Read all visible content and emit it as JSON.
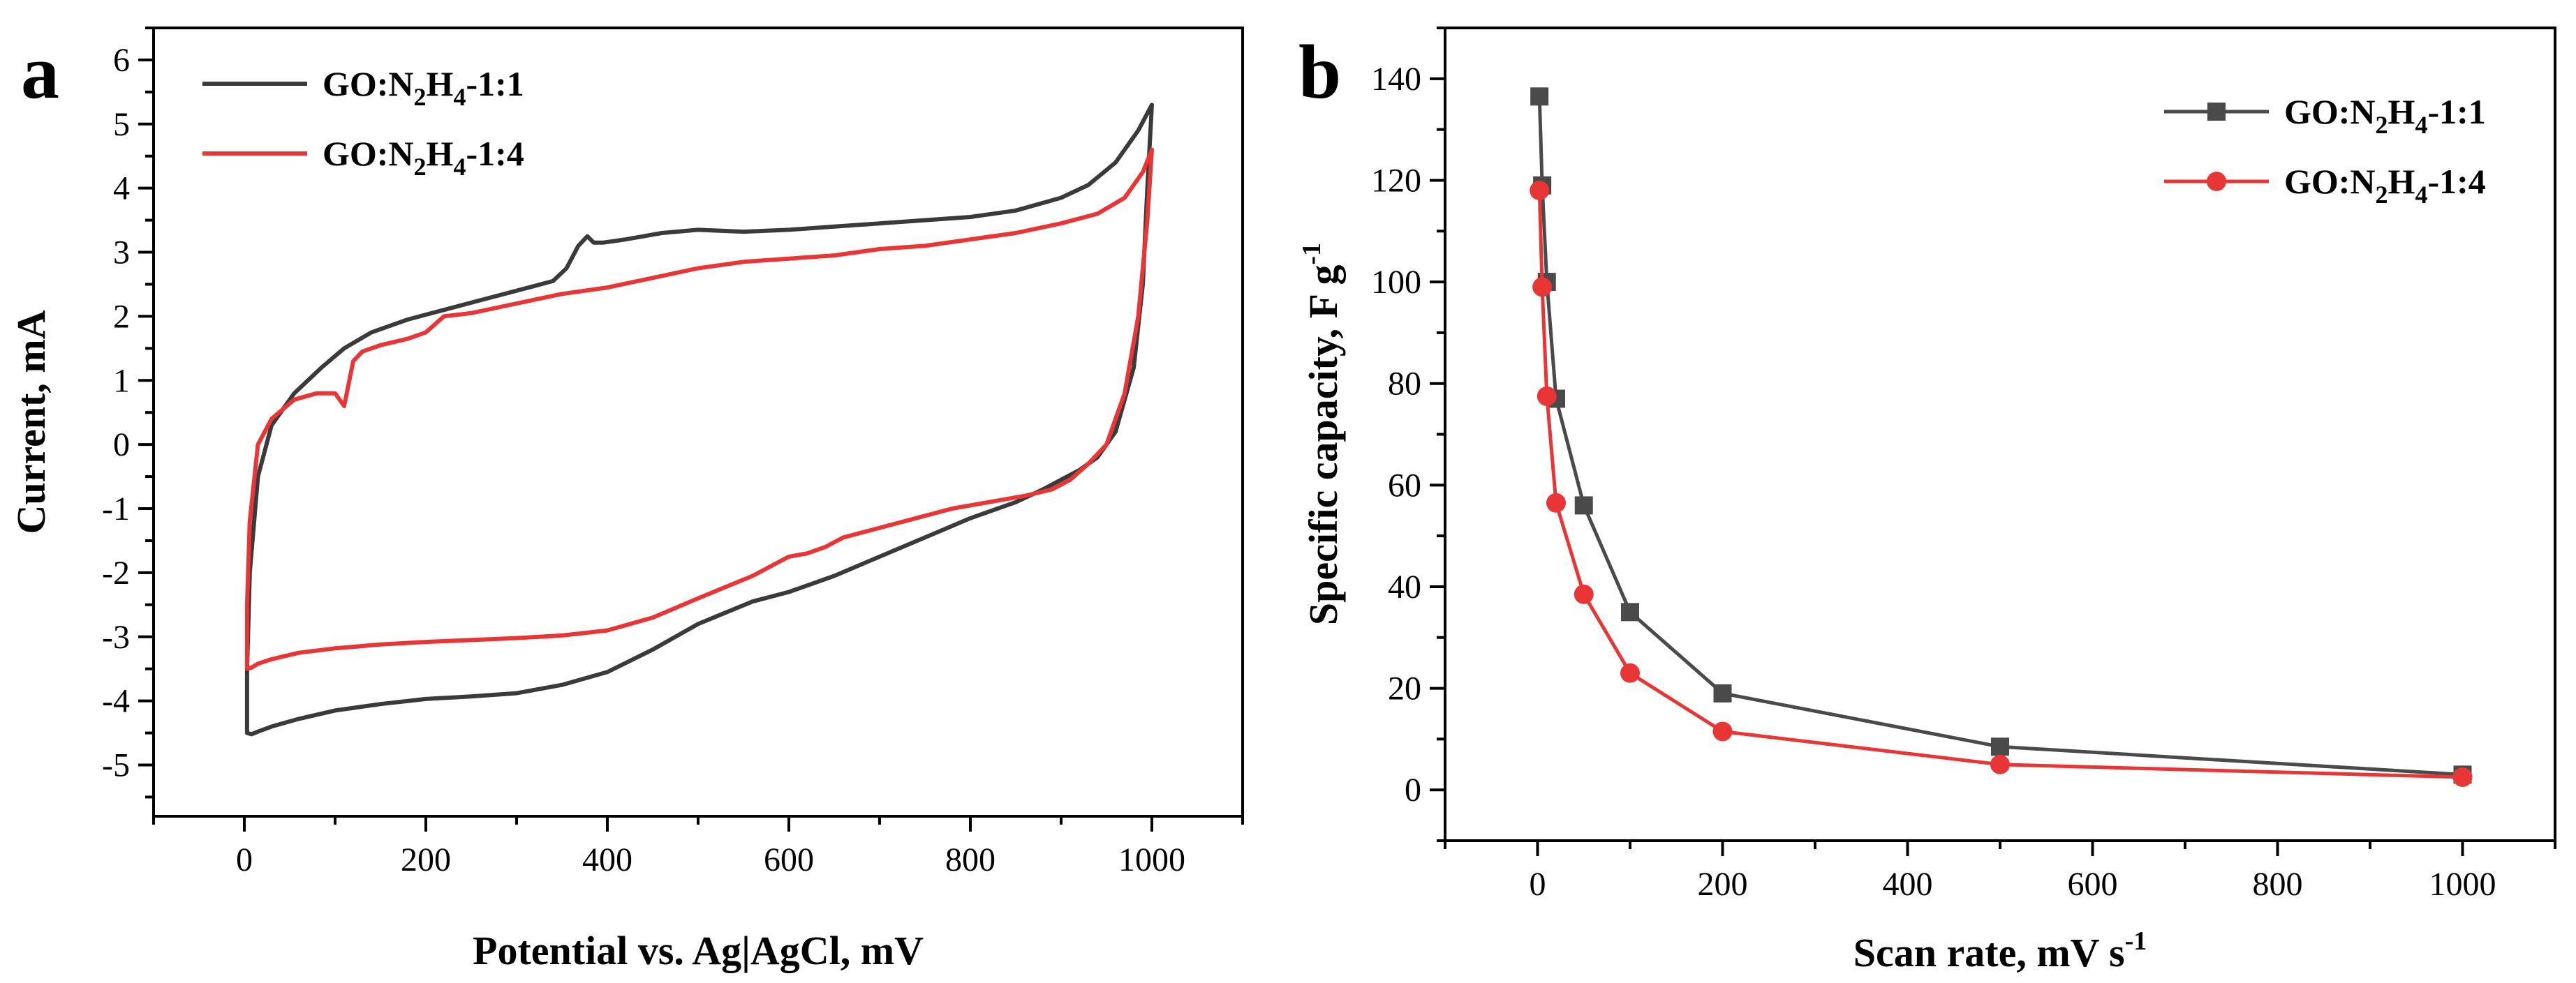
{
  "chart_data": [
    {
      "panel": "a",
      "type": "line",
      "title": "",
      "xlabel": "Potential vs. Ag|AgCl, mV",
      "ylabel": "Current, mA",
      "xlim": [
        -100,
        1100
      ],
      "ylim": [
        -5.8,
        6.5
      ],
      "xticks": [
        0,
        200,
        400,
        600,
        800,
        1000
      ],
      "yticks": [
        -5,
        -4,
        -3,
        -2,
        -1,
        0,
        1,
        2,
        3,
        4,
        5,
        6
      ],
      "grid": false,
      "legend_position": "top-left",
      "series": [
        {
          "name_main": "GO:N",
          "name_sub1": "2",
          "name_mid": "H",
          "name_sub2": "4",
          "name_tail": "-1:1",
          "color": "#3a3a3a",
          "x": [
            3,
            3,
            6,
            15,
            30,
            55,
            85,
            110,
            140,
            180,
            220,
            260,
            300,
            340,
            355,
            368,
            378,
            385,
            395,
            420,
            460,
            500,
            550,
            600,
            650,
            700,
            750,
            800,
            850,
            900,
            930,
            960,
            985,
            1000,
            995,
            990,
            980,
            960,
            940,
            920,
            900,
            880,
            850,
            800,
            750,
            700,
            650,
            600,
            560,
            500,
            450,
            400,
            350,
            300,
            250,
            200,
            150,
            100,
            60,
            30,
            15,
            8,
            3
          ],
          "y": [
            -4.5,
            -3.5,
            -2.0,
            -0.5,
            0.3,
            0.8,
            1.2,
            1.5,
            1.75,
            1.95,
            2.1,
            2.25,
            2.4,
            2.55,
            2.75,
            3.1,
            3.25,
            3.15,
            3.15,
            3.2,
            3.3,
            3.35,
            3.32,
            3.35,
            3.4,
            3.45,
            3.5,
            3.55,
            3.65,
            3.85,
            4.05,
            4.4,
            4.9,
            5.3,
            4.0,
            2.5,
            1.2,
            0.2,
            -0.2,
            -0.4,
            -0.55,
            -0.7,
            -0.9,
            -1.15,
            -1.45,
            -1.75,
            -2.05,
            -2.3,
            -2.45,
            -2.8,
            -3.2,
            -3.55,
            -3.75,
            -3.88,
            -3.93,
            -3.97,
            -4.05,
            -4.15,
            -4.28,
            -4.4,
            -4.48,
            -4.52,
            -4.5
          ]
        },
        {
          "name_main": "GO:N",
          "name_sub1": "2",
          "name_mid": "H",
          "name_sub2": "4",
          "name_tail": "-1:4",
          "color": "#e83535",
          "x": [
            3,
            3,
            6,
            15,
            30,
            55,
            80,
            100,
            110,
            120,
            130,
            150,
            180,
            200,
            220,
            250,
            300,
            350,
            400,
            450,
            500,
            550,
            600,
            650,
            700,
            750,
            800,
            850,
            900,
            940,
            970,
            990,
            1000,
            995,
            985,
            970,
            950,
            930,
            910,
            890,
            860,
            820,
            780,
            740,
            700,
            660,
            640,
            620,
            600,
            560,
            500,
            450,
            400,
            350,
            300,
            250,
            200,
            150,
            100,
            60,
            30,
            15,
            8,
            3
          ],
          "y": [
            -3.5,
            -2.5,
            -1.2,
            0.0,
            0.4,
            0.7,
            0.8,
            0.8,
            0.6,
            1.3,
            1.45,
            1.55,
            1.65,
            1.75,
            2.0,
            2.05,
            2.2,
            2.35,
            2.45,
            2.6,
            2.75,
            2.85,
            2.9,
            2.95,
            3.05,
            3.1,
            3.2,
            3.3,
            3.45,
            3.6,
            3.85,
            4.25,
            4.6,
            3.5,
            2.0,
            0.8,
            0.0,
            -0.3,
            -0.55,
            -0.7,
            -0.8,
            -0.9,
            -1.0,
            -1.15,
            -1.3,
            -1.45,
            -1.6,
            -1.7,
            -1.75,
            -2.05,
            -2.4,
            -2.7,
            -2.9,
            -2.98,
            -3.02,
            -3.05,
            -3.08,
            -3.12,
            -3.18,
            -3.25,
            -3.35,
            -3.42,
            -3.48,
            -3.5
          ]
        }
      ]
    },
    {
      "panel": "b",
      "type": "line",
      "title": "",
      "xlabel_main": "Scan rate, mV s",
      "xlabel_sup": "-1",
      "ylabel_main": "Specific capacity, F g",
      "ylabel_sup": "-1",
      "xlim": [
        -100,
        1100
      ],
      "ylim": [
        -10,
        150
      ],
      "xticks": [
        0,
        200,
        400,
        600,
        800,
        1000
      ],
      "yticks": [
        0,
        20,
        40,
        60,
        80,
        100,
        120,
        140
      ],
      "grid": false,
      "legend_position": "top-right",
      "series": [
        {
          "name_main": "GO:N",
          "name_sub1": "2",
          "name_mid": "H",
          "name_sub2": "4",
          "name_tail": "-1:1",
          "color": "#4a4a4a",
          "marker": "square",
          "x": [
            2,
            5,
            10,
            20,
            50,
            100,
            200,
            500,
            1000
          ],
          "y": [
            136.5,
            119,
            100,
            77,
            56,
            35,
            19,
            8.5,
            3
          ]
        },
        {
          "name_main": "GO:N",
          "name_sub1": "2",
          "name_mid": "H",
          "name_sub2": "4",
          "name_tail": "-1:4",
          "color": "#e83535",
          "marker": "circle",
          "x": [
            2,
            5,
            10,
            20,
            50,
            100,
            200,
            500,
            1000
          ],
          "y": [
            118,
            99,
            77.5,
            56.5,
            38.5,
            23,
            11.5,
            5,
            2.5
          ]
        }
      ]
    }
  ]
}
